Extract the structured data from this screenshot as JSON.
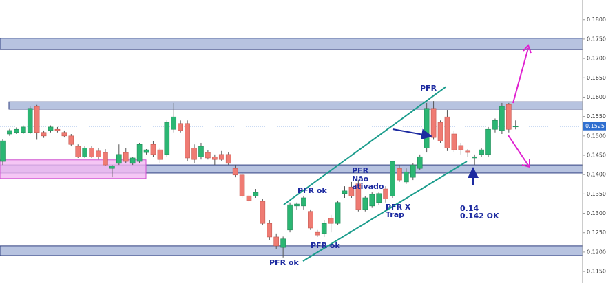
{
  "chart_data": {
    "type": "candlestick",
    "ylim": [
      0.112,
      0.1851
    ],
    "yticks": [
      {
        "value": 0.115,
        "label": "0.1150"
      },
      {
        "value": 0.12,
        "label": "0.1200"
      },
      {
        "value": 0.125,
        "label": "0.1250"
      },
      {
        "value": 0.13,
        "label": "0.1300"
      },
      {
        "value": 0.135,
        "label": "0.1350"
      },
      {
        "value": 0.14,
        "label": "0.1400"
      },
      {
        "value": 0.145,
        "label": "0.1450"
      },
      {
        "value": 0.15,
        "label": "0.1500"
      },
      {
        "value": 0.155,
        "label": "0.1550"
      },
      {
        "value": 0.16,
        "label": "0.1600"
      },
      {
        "value": 0.165,
        "label": "0.1650"
      },
      {
        "value": 0.17,
        "label": "0.1700"
      },
      {
        "value": 0.175,
        "label": "0.1750"
      },
      {
        "value": 0.18,
        "label": "0.1800"
      }
    ],
    "up_color": "#2bb673",
    "down_color": "#ef7b73",
    "last_price": 0.1525,
    "zones": [
      {
        "range": [
          0.1723,
          0.1752
        ],
        "color": "#b7c3e0"
      },
      {
        "range": [
          0.1569,
          0.1588
        ],
        "color": "#b7c3e0"
      },
      {
        "range": [
          0.1404,
          0.1425
        ],
        "color": "#b7c3e0"
      },
      {
        "range": [
          0.139,
          0.1438
        ],
        "color": "#f2b8f2"
      },
      {
        "range": [
          0.1191,
          0.1216
        ],
        "color": "#b7c3e0"
      }
    ],
    "annotations": [
      "PFR",
      "PFR ok",
      "PFR",
      "Não",
      "ativado",
      "PFR ok",
      "PFR ok",
      "PFR X",
      "Trap",
      "0.14",
      "0.142 OK"
    ],
    "candles": [
      [
        0.1434,
        0.1492,
        0.1425,
        0.1487
      ],
      [
        0.1505,
        0.1518,
        0.15,
        0.1514
      ],
      [
        0.1509,
        0.1522,
        0.1505,
        0.1517
      ],
      [
        0.1509,
        0.1527,
        0.1505,
        0.1523
      ],
      [
        0.1509,
        0.1576,
        0.1505,
        0.1571
      ],
      [
        0.1576,
        0.158,
        0.149,
        0.1509
      ],
      [
        0.1509,
        0.1514,
        0.1495,
        0.15
      ],
      [
        0.1514,
        0.1527,
        0.1509,
        0.1523
      ],
      [
        0.1517,
        0.1523,
        0.1509,
        0.1514
      ],
      [
        0.1509,
        0.1514,
        0.1496,
        0.15
      ],
      [
        0.15,
        0.1505,
        0.1473,
        0.1478
      ],
      [
        0.1473,
        0.1478,
        0.1443,
        0.1446
      ],
      [
        0.1446,
        0.1473,
        0.1443,
        0.1469
      ],
      [
        0.1469,
        0.1473,
        0.1443,
        0.1446
      ],
      [
        0.1461,
        0.1469,
        0.1439,
        0.1446
      ],
      [
        0.1457,
        0.1466,
        0.1422,
        0.1425
      ],
      [
        0.1416,
        0.1425,
        0.1393,
        0.1422
      ],
      [
        0.1429,
        0.1478,
        0.1425,
        0.1452
      ],
      [
        0.1457,
        0.1469,
        0.1429,
        0.1434
      ],
      [
        0.1429,
        0.1446,
        0.1425,
        0.1443
      ],
      [
        0.1434,
        0.1482,
        0.1429,
        0.1478
      ],
      [
        0.1457,
        0.1466,
        0.1452,
        0.1464
      ],
      [
        0.1478,
        0.1487,
        0.1446,
        0.1452
      ],
      [
        0.1464,
        0.1469,
        0.1429,
        0.1439
      ],
      [
        0.1452,
        0.154,
        0.1446,
        0.1535
      ],
      [
        0.1517,
        0.1585,
        0.1509,
        0.1549
      ],
      [
        0.1532,
        0.154,
        0.1509,
        0.1514
      ],
      [
        0.1532,
        0.154,
        0.1434,
        0.1443
      ],
      [
        0.1469,
        0.1478,
        0.1429,
        0.1439
      ],
      [
        0.1446,
        0.1482,
        0.1439,
        0.1473
      ],
      [
        0.1457,
        0.1464,
        0.1439,
        0.1443
      ],
      [
        0.1446,
        0.1452,
        0.1425,
        0.1439
      ],
      [
        0.1452,
        0.1461,
        0.1434,
        0.1439
      ],
      [
        0.1452,
        0.1457,
        0.1425,
        0.1429
      ],
      [
        0.1416,
        0.1425,
        0.1393,
        0.1399
      ],
      [
        0.1399,
        0.1404,
        0.134,
        0.1345
      ],
      [
        0.1345,
        0.1351,
        0.1328,
        0.1333
      ],
      [
        0.1345,
        0.1363,
        0.134,
        0.1354
      ],
      [
        0.1331,
        0.1337,
        0.127,
        0.1274
      ],
      [
        0.1274,
        0.1283,
        0.123,
        0.1239
      ],
      [
        0.1239,
        0.1248,
        0.1207,
        0.1216
      ],
      [
        0.1212,
        0.124,
        0.1186,
        0.1234
      ],
      [
        0.1257,
        0.1328,
        0.1251,
        0.1322
      ],
      [
        0.1319,
        0.1328,
        0.131,
        0.1324
      ],
      [
        0.1319,
        0.1345,
        0.131,
        0.134
      ],
      [
        0.1305,
        0.131,
        0.1257,
        0.1262
      ],
      [
        0.1251,
        0.1257,
        0.1239,
        0.1244
      ],
      [
        0.1248,
        0.1283,
        0.1239,
        0.1274
      ],
      [
        0.1287,
        0.1296,
        0.1251,
        0.1274
      ],
      [
        0.1274,
        0.1333,
        0.127,
        0.1328
      ],
      [
        0.1351,
        0.137,
        0.134,
        0.1358
      ],
      [
        0.1368,
        0.1381,
        0.134,
        0.1345
      ],
      [
        0.1376,
        0.1386,
        0.1305,
        0.131
      ],
      [
        0.131,
        0.1345,
        0.1305,
        0.134
      ],
      [
        0.1319,
        0.1354,
        0.1314,
        0.1349
      ],
      [
        0.1328,
        0.1354,
        0.1322,
        0.1351
      ],
      [
        0.1363,
        0.137,
        0.1328,
        0.1337
      ],
      [
        0.1345,
        0.1434,
        0.134,
        0.1434
      ],
      [
        0.1416,
        0.1425,
        0.1381,
        0.1386
      ],
      [
        0.1381,
        0.1416,
        0.1376,
        0.1407
      ],
      [
        0.1393,
        0.1429,
        0.1386,
        0.1425
      ],
      [
        0.1416,
        0.1452,
        0.1411,
        0.1446
      ],
      [
        0.1469,
        0.1585,
        0.1457,
        0.1571
      ],
      [
        0.1571,
        0.159,
        0.149,
        0.1496
      ],
      [
        0.1535,
        0.154,
        0.1482,
        0.1487
      ],
      [
        0.1549,
        0.1567,
        0.1461,
        0.1469
      ],
      [
        0.1505,
        0.1514,
        0.1457,
        0.1464
      ],
      [
        0.1475,
        0.1482,
        0.1452,
        0.1464
      ],
      [
        0.1461,
        0.1466,
        0.1446,
        0.1457
      ],
      [
        0.1443,
        0.1452,
        0.1425,
        0.1446
      ],
      [
        0.1452,
        0.1469,
        0.1446,
        0.1464
      ],
      [
        0.1452,
        0.1523,
        0.1446,
        0.1517
      ],
      [
        0.1517,
        0.1545,
        0.1509,
        0.154
      ],
      [
        0.1514,
        0.1585,
        0.1505,
        0.1576
      ],
      [
        0.1581,
        0.1585,
        0.1509,
        0.1517
      ],
      [
        0.1525,
        0.154,
        0.1517,
        0.1525
      ]
    ]
  }
}
